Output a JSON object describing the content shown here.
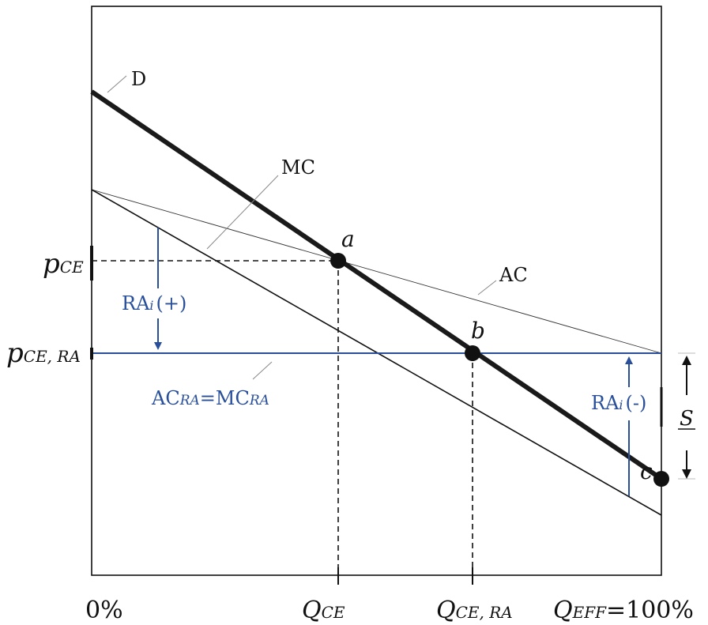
{
  "colors": {
    "black": "#111111",
    "blue": "#2a4f9a",
    "demand": "#1a1a1a"
  },
  "curves": {
    "demand_label": "D",
    "mc_label": "MC",
    "ac_label": "AC",
    "acra_label_prefix_1": "AC",
    "acra_label_sub_1": "RA",
    "acra_label_eq": "=MC",
    "acra_label_sub_2": "RA"
  },
  "points": {
    "a": "a",
    "b": "b",
    "c": "c"
  },
  "y_labels": {
    "p_ce_main": "p",
    "p_ce_sub": "CE",
    "p_cera_main": "p",
    "p_cera_sub": "CE, RA"
  },
  "x_labels": {
    "zero": "0%",
    "q_ce_main": "Q",
    "q_ce_sub": "CE",
    "q_cera_main": "Q",
    "q_cera_sub": "CE, RA",
    "q_eff_main": "Q",
    "q_eff_sub": "EFF",
    "q_eff_suffix": "=100%"
  },
  "annotations": {
    "ra_plus_main": "RA",
    "ra_plus_sub": "i",
    "ra_plus_sign": "(+)",
    "ra_minus_main": "RA",
    "ra_minus_sub": "i",
    "ra_minus_sign": "(-)",
    "s_label": "S"
  }
}
